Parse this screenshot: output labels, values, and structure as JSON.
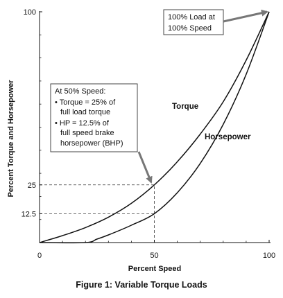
{
  "chart_data": {
    "type": "line",
    "xlabel": "Percent Speed",
    "ylabel": "Percent Torque and Horsepower",
    "xlim": [
      0,
      100
    ],
    "ylim": [
      0,
      100
    ],
    "x_ticks": [
      {
        "value": 0,
        "label": "0"
      },
      {
        "value": 50,
        "label": "50"
      },
      {
        "value": 100,
        "label": "100"
      }
    ],
    "y_ticks": [
      {
        "value": 12.5,
        "label": "12.5"
      },
      {
        "value": 25,
        "label": "25"
      },
      {
        "value": 100,
        "label": "100"
      }
    ],
    "series": [
      {
        "name": "Torque",
        "x": [
          0,
          10,
          20,
          30,
          40,
          50,
          60,
          70,
          80,
          90,
          100
        ],
        "y": [
          0,
          3,
          6.5,
          11,
          17,
          25,
          35,
          47,
          61,
          79,
          100
        ]
      },
      {
        "name": "Horsepower",
        "x": [
          0,
          20,
          25,
          30,
          40,
          50,
          60,
          70,
          80,
          90,
          100
        ],
        "y": [
          0,
          0,
          1.5,
          3.3,
          7.5,
          12.5,
          21.6,
          34.3,
          51.2,
          72.9,
          100
        ]
      }
    ],
    "reference_lines": [
      {
        "type": "horizontal",
        "y": 25,
        "x_from": 0,
        "x_to": 50
      },
      {
        "type": "horizontal",
        "y": 12.5,
        "x_from": 0,
        "x_to": 50
      },
      {
        "type": "vertical",
        "x": 50,
        "y_from": 0,
        "y_to": 25
      }
    ],
    "annotations": [
      {
        "id": "full-load",
        "lines": [
          "100% Load at",
          "100% Speed"
        ],
        "points_to": {
          "x": 100,
          "y": 100
        }
      },
      {
        "id": "half-speed",
        "lines": [
          "At 50% Speed:",
          "• Torque = 25% of",
          "full load torque",
          "• HP = 12.5% of",
          "full speed brake",
          "horsepower (BHP)"
        ],
        "points_to": {
          "x": 50,
          "y": 25
        }
      }
    ],
    "series_labels": [
      "Torque",
      "Horsepower"
    ]
  },
  "caption": "Figure 1: Variable Torque Loads"
}
